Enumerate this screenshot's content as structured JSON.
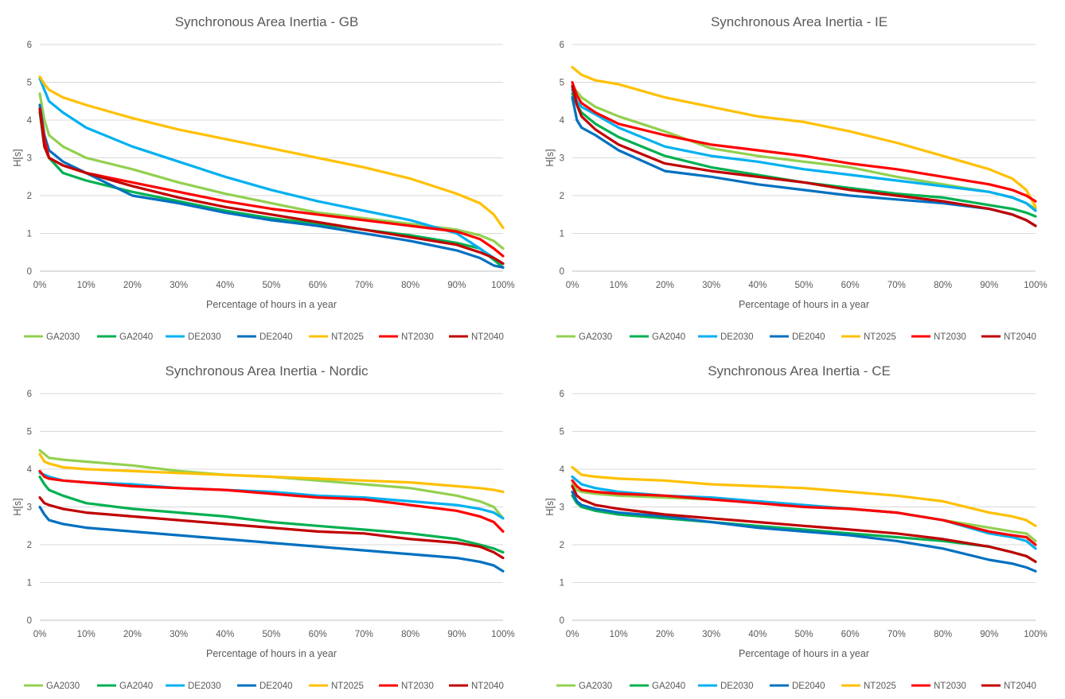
{
  "series_styles": [
    {
      "name": "GA2030",
      "color": "#92d050"
    },
    {
      "name": "GA2040",
      "color": "#00b050"
    },
    {
      "name": "DE2030",
      "color": "#00b0f0"
    },
    {
      "name": "DE2040",
      "color": "#0070c0"
    },
    {
      "name": "NT2025",
      "color": "#ffc000"
    },
    {
      "name": "NT2030",
      "color": "#ff0000"
    },
    {
      "name": "NT2040",
      "color": "#c00000"
    }
  ],
  "chart_data": [
    {
      "type": "line",
      "title": "Synchronous Area Inertia - GB",
      "xlabel": "Percentage of hours in a year",
      "ylabel": "H[s]",
      "ylim": [
        0,
        6
      ],
      "xlim": [
        0,
        100
      ],
      "yticks": [
        "0",
        "1",
        "2",
        "3",
        "4",
        "5",
        "6"
      ],
      "xticks": [
        "0%",
        "10%",
        "20%",
        "30%",
        "40%",
        "50%",
        "60%",
        "70%",
        "80%",
        "90%",
        "100%"
      ],
      "grid": true,
      "legend": "bottom",
      "x": [
        0,
        1,
        2,
        5,
        10,
        20,
        30,
        40,
        50,
        60,
        70,
        80,
        90,
        95,
        98,
        100
      ],
      "series": [
        {
          "name": "GA2030",
          "values": [
            4.7,
            4.0,
            3.6,
            3.3,
            3.0,
            2.7,
            2.35,
            2.05,
            1.8,
            1.55,
            1.4,
            1.25,
            1.1,
            0.95,
            0.8,
            0.6
          ]
        },
        {
          "name": "GA2040",
          "values": [
            4.2,
            3.3,
            3.0,
            2.6,
            2.4,
            2.1,
            1.85,
            1.6,
            1.4,
            1.25,
            1.1,
            0.95,
            0.75,
            0.6,
            0.3,
            0.1
          ]
        },
        {
          "name": "DE2030",
          "values": [
            5.1,
            4.8,
            4.5,
            4.2,
            3.8,
            3.3,
            2.9,
            2.5,
            2.15,
            1.85,
            1.6,
            1.35,
            1.0,
            0.6,
            0.35,
            0.2
          ]
        },
        {
          "name": "DE2040",
          "values": [
            4.4,
            3.6,
            3.2,
            2.9,
            2.6,
            2.0,
            1.8,
            1.55,
            1.35,
            1.2,
            1.0,
            0.8,
            0.55,
            0.35,
            0.15,
            0.1
          ]
        },
        {
          "name": "NT2025",
          "values": [
            5.15,
            4.95,
            4.8,
            4.6,
            4.4,
            4.05,
            3.75,
            3.5,
            3.25,
            3.0,
            2.75,
            2.45,
            2.05,
            1.8,
            1.5,
            1.15
          ]
        },
        {
          "name": "NT2030",
          "values": [
            4.3,
            3.5,
            3.0,
            2.8,
            2.6,
            2.35,
            2.1,
            1.85,
            1.65,
            1.5,
            1.35,
            1.2,
            1.05,
            0.85,
            0.6,
            0.4
          ]
        },
        {
          "name": "NT2040",
          "values": [
            4.3,
            3.3,
            3.0,
            2.8,
            2.6,
            2.25,
            1.95,
            1.7,
            1.5,
            1.3,
            1.1,
            0.9,
            0.7,
            0.5,
            0.35,
            0.2
          ]
        }
      ]
    },
    {
      "type": "line",
      "title": "Synchronous Area Inertia - IE",
      "xlabel": "Percentage of hours in a year",
      "ylabel": "H[s]",
      "ylim": [
        0,
        6
      ],
      "xlim": [
        0,
        100
      ],
      "yticks": [
        "0",
        "1",
        "2",
        "3",
        "4",
        "5",
        "6"
      ],
      "xticks": [
        "0%",
        "10%",
        "20%",
        "30%",
        "40%",
        "50%",
        "60%",
        "70%",
        "80%",
        "90%",
        "100%"
      ],
      "grid": true,
      "legend": "bottom",
      "x": [
        0,
        1,
        2,
        5,
        10,
        20,
        30,
        40,
        50,
        60,
        70,
        80,
        90,
        95,
        98,
        100
      ],
      "series": [
        {
          "name": "GA2030",
          "values": [
            4.9,
            4.75,
            4.6,
            4.35,
            4.1,
            3.7,
            3.25,
            3.05,
            2.9,
            2.75,
            2.5,
            2.3,
            2.1,
            1.95,
            1.8,
            1.65
          ]
        },
        {
          "name": "GA2040",
          "values": [
            4.7,
            4.4,
            4.2,
            3.9,
            3.55,
            3.05,
            2.75,
            2.55,
            2.35,
            2.2,
            2.05,
            1.95,
            1.75,
            1.65,
            1.55,
            1.45
          ]
        },
        {
          "name": "DE2030",
          "values": [
            4.8,
            4.5,
            4.35,
            4.15,
            3.8,
            3.3,
            3.05,
            2.9,
            2.7,
            2.55,
            2.4,
            2.25,
            2.1,
            1.95,
            1.8,
            1.6
          ]
        },
        {
          "name": "DE2040",
          "values": [
            4.6,
            4.0,
            3.8,
            3.6,
            3.2,
            2.65,
            2.5,
            2.3,
            2.15,
            2.0,
            1.9,
            1.8,
            1.65,
            1.5,
            1.35,
            1.2
          ]
        },
        {
          "name": "NT2025",
          "values": [
            5.4,
            5.3,
            5.2,
            5.05,
            4.95,
            4.6,
            4.35,
            4.1,
            3.95,
            3.7,
            3.4,
            3.05,
            2.7,
            2.45,
            2.15,
            1.7
          ]
        },
        {
          "name": "NT2030",
          "values": [
            5.0,
            4.65,
            4.45,
            4.2,
            3.9,
            3.6,
            3.35,
            3.2,
            3.05,
            2.85,
            2.7,
            2.5,
            2.3,
            2.15,
            2.0,
            1.85
          ]
        },
        {
          "name": "NT2040",
          "values": [
            4.9,
            4.4,
            4.1,
            3.75,
            3.35,
            2.85,
            2.65,
            2.5,
            2.35,
            2.15,
            2.0,
            1.85,
            1.65,
            1.5,
            1.35,
            1.2
          ]
        }
      ]
    },
    {
      "type": "line",
      "title": "Synchronous Area Inertia - Nordic",
      "xlabel": "Percentage of hours in a year",
      "ylabel": "H[s]",
      "ylim": [
        0,
        6
      ],
      "xlim": [
        0,
        100
      ],
      "yticks": [
        "0",
        "1",
        "2",
        "3",
        "4",
        "5",
        "6"
      ],
      "xticks": [
        "0%",
        "10%",
        "20%",
        "30%",
        "40%",
        "50%",
        "60%",
        "70%",
        "80%",
        "90%",
        "100%"
      ],
      "grid": true,
      "legend": "bottom",
      "x": [
        0,
        1,
        2,
        5,
        10,
        20,
        30,
        40,
        50,
        60,
        70,
        80,
        90,
        95,
        98,
        100
      ],
      "series": [
        {
          "name": "GA2030",
          "values": [
            4.5,
            4.4,
            4.3,
            4.25,
            4.2,
            4.1,
            3.95,
            3.85,
            3.8,
            3.7,
            3.6,
            3.5,
            3.3,
            3.15,
            3.0,
            2.7
          ]
        },
        {
          "name": "GA2040",
          "values": [
            3.8,
            3.6,
            3.45,
            3.3,
            3.1,
            2.95,
            2.85,
            2.75,
            2.6,
            2.5,
            2.4,
            2.3,
            2.15,
            2.0,
            1.9,
            1.8
          ]
        },
        {
          "name": "DE2030",
          "values": [
            3.9,
            3.85,
            3.8,
            3.7,
            3.65,
            3.6,
            3.5,
            3.45,
            3.4,
            3.3,
            3.25,
            3.15,
            3.05,
            2.95,
            2.85,
            2.7
          ]
        },
        {
          "name": "DE2040",
          "values": [
            3.0,
            2.8,
            2.65,
            2.55,
            2.45,
            2.35,
            2.25,
            2.15,
            2.05,
            1.95,
            1.85,
            1.75,
            1.65,
            1.55,
            1.45,
            1.3
          ]
        },
        {
          "name": "NT2025",
          "values": [
            4.4,
            4.2,
            4.15,
            4.05,
            4.0,
            3.95,
            3.9,
            3.85,
            3.8,
            3.75,
            3.7,
            3.65,
            3.55,
            3.5,
            3.45,
            3.4
          ]
        },
        {
          "name": "NT2030",
          "values": [
            3.95,
            3.8,
            3.75,
            3.7,
            3.65,
            3.55,
            3.5,
            3.45,
            3.35,
            3.25,
            3.2,
            3.05,
            2.9,
            2.75,
            2.6,
            2.35
          ]
        },
        {
          "name": "NT2040",
          "values": [
            3.25,
            3.1,
            3.05,
            2.95,
            2.85,
            2.75,
            2.65,
            2.55,
            2.45,
            2.35,
            2.3,
            2.15,
            2.05,
            1.95,
            1.8,
            1.65
          ]
        }
      ]
    },
    {
      "type": "line",
      "title": "Synchronous Area Inertia - CE",
      "xlabel": "Percentage of hours in a year",
      "ylabel": "H[s]",
      "ylim": [
        0,
        6
      ],
      "xlim": [
        0,
        100
      ],
      "yticks": [
        "0",
        "1",
        "2",
        "3",
        "4",
        "5",
        "6"
      ],
      "xticks": [
        "0%",
        "10%",
        "20%",
        "30%",
        "40%",
        "50%",
        "60%",
        "70%",
        "80%",
        "90%",
        "100%"
      ],
      "grid": true,
      "legend": "bottom",
      "x": [
        0,
        1,
        2,
        5,
        10,
        20,
        30,
        40,
        50,
        60,
        70,
        80,
        90,
        95,
        98,
        100
      ],
      "series": [
        {
          "name": "GA2030",
          "values": [
            3.6,
            3.45,
            3.4,
            3.35,
            3.3,
            3.25,
            3.2,
            3.15,
            3.05,
            2.95,
            2.85,
            2.65,
            2.45,
            2.35,
            2.3,
            2.1
          ]
        },
        {
          "name": "GA2040",
          "values": [
            3.3,
            3.1,
            3.0,
            2.9,
            2.8,
            2.7,
            2.6,
            2.5,
            2.4,
            2.3,
            2.2,
            2.1,
            1.95,
            1.8,
            1.7,
            1.55
          ]
        },
        {
          "name": "DE2030",
          "values": [
            3.8,
            3.7,
            3.6,
            3.5,
            3.4,
            3.3,
            3.25,
            3.15,
            3.05,
            2.95,
            2.85,
            2.65,
            2.3,
            2.2,
            2.1,
            1.9
          ]
        },
        {
          "name": "DE2040",
          "values": [
            3.4,
            3.15,
            3.05,
            2.95,
            2.85,
            2.75,
            2.6,
            2.45,
            2.35,
            2.25,
            2.1,
            1.9,
            1.6,
            1.5,
            1.4,
            1.3
          ]
        },
        {
          "name": "NT2025",
          "values": [
            4.05,
            3.95,
            3.85,
            3.8,
            3.75,
            3.7,
            3.6,
            3.55,
            3.5,
            3.4,
            3.3,
            3.15,
            2.85,
            2.75,
            2.65,
            2.5
          ]
        },
        {
          "name": "NT2030",
          "values": [
            3.7,
            3.55,
            3.45,
            3.4,
            3.35,
            3.3,
            3.2,
            3.1,
            3.0,
            2.95,
            2.85,
            2.65,
            2.35,
            2.25,
            2.2,
            2.0
          ]
        },
        {
          "name": "NT2040",
          "values": [
            3.55,
            3.3,
            3.2,
            3.05,
            2.95,
            2.8,
            2.7,
            2.6,
            2.5,
            2.4,
            2.3,
            2.15,
            1.95,
            1.8,
            1.7,
            1.55
          ]
        }
      ]
    }
  ]
}
